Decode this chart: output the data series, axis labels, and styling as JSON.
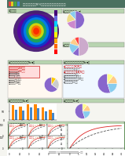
{
  "bg": "#f5f5f0",
  "header_color": "#5a7a5a",
  "green_label_bg": "#b8d4b0",
  "green_section_bg": "#d0e8d0",
  "map_bg": "#7b5ea7",
  "intensity_colors": [
    "#ff0000",
    "#ff6600",
    "#ffaa00",
    "#ffff00",
    "#aaffaa",
    "#00ccff",
    "#5555cc",
    "#330066"
  ],
  "pie1_colors": [
    "#88ccee",
    "#eedd88",
    "#cc88cc",
    "#8866cc"
  ],
  "pie2_colors": [
    "#ff4444",
    "#ffcc88",
    "#88ccee",
    "#8866cc",
    "#ccaacc"
  ],
  "pie3_colors": [
    "#8866cc",
    "#cccccc",
    "#ffcc00"
  ],
  "pie4_colors": [
    "#8866cc",
    "#88ccee",
    "#ffcc88",
    "#ffff88"
  ],
  "bar_orange": "#ff8800",
  "bar_blue": "#4488cc",
  "line_red": "#dd2222",
  "line_dark": "#333333",
  "footer": "#ffffff"
}
